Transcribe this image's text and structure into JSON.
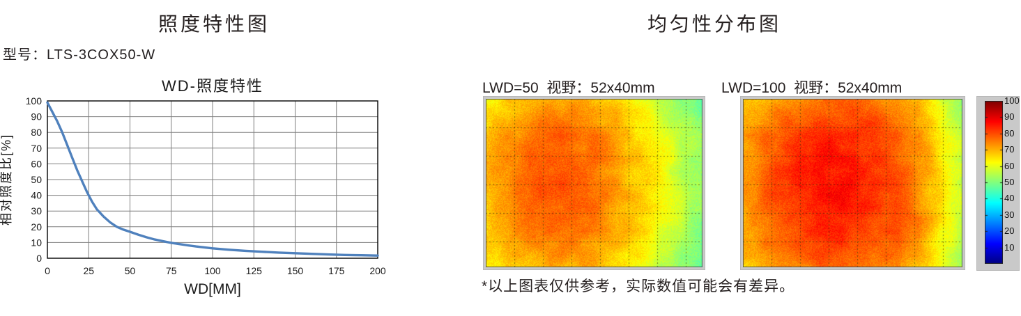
{
  "page": {
    "background": "#ffffff"
  },
  "left_section": {
    "title": "照度特性图",
    "model_label": "型号：LTS-3COX50-W"
  },
  "right_section": {
    "title": "均匀性分布图",
    "footnote": "*以上图表仅供参考，实际数值可能会有差异。",
    "colorbar": {
      "colormap": "jet",
      "vmin": 0,
      "vmax": 100,
      "ticks": [
        100,
        90,
        80,
        70,
        60,
        50,
        40,
        30,
        20,
        10
      ]
    }
  },
  "chart_data": [
    {
      "type": "line",
      "title": "WD-照度特性",
      "xlabel": "WD[MM]",
      "ylabel": "相对照度比[%]",
      "xlim": [
        0,
        200
      ],
      "ylim": [
        0,
        100
      ],
      "xticks": [
        0,
        25,
        50,
        75,
        100,
        125,
        150,
        175,
        200
      ],
      "yticks": [
        0,
        10,
        20,
        30,
        40,
        50,
        60,
        70,
        80,
        90,
        100
      ],
      "grid": true,
      "grid_color": "#7f7f7f",
      "legend_position": "none",
      "series": [
        {
          "name": "相对照度比",
          "color": "#4f81bd",
          "points": [
            [
              0,
              99
            ],
            [
              3,
              93
            ],
            [
              6,
              87
            ],
            [
              9,
              80
            ],
            [
              12,
              72
            ],
            [
              15,
              64
            ],
            [
              18,
              56
            ],
            [
              21,
              49
            ],
            [
              24,
              42
            ],
            [
              27,
              36
            ],
            [
              30,
              31
            ],
            [
              34,
              26.5
            ],
            [
              38,
              22.8
            ],
            [
              42,
              20
            ],
            [
              46,
              18.2
            ],
            [
              50,
              16.8
            ],
            [
              55,
              15
            ],
            [
              60,
              13.3
            ],
            [
              65,
              11.9
            ],
            [
              70,
              10.8
            ],
            [
              75,
              9.8
            ],
            [
              80,
              9
            ],
            [
              85,
              8.2
            ],
            [
              90,
              7.5
            ],
            [
              95,
              6.9
            ],
            [
              100,
              6.3
            ],
            [
              110,
              5.4
            ],
            [
              120,
              4.7
            ],
            [
              130,
              4.1
            ],
            [
              140,
              3.6
            ],
            [
              150,
              3.2
            ],
            [
              160,
              2.8
            ],
            [
              170,
              2.4
            ],
            [
              180,
              2.1
            ],
            [
              190,
              1.9
            ],
            [
              200,
              1.7
            ]
          ]
        }
      ]
    },
    {
      "type": "heatmap",
      "title": "LWD=50  视野：52x40mm",
      "colormap": "jet",
      "value_range": [
        0,
        100
      ],
      "approx_values": {
        "left_edge": 68,
        "hot_center": 79,
        "right_edge": 52
      },
      "render": {
        "seed": 7,
        "base": [
          [
            0,
            68
          ],
          [
            0.08,
            71
          ],
          [
            0.2,
            74
          ],
          [
            0.35,
            76
          ],
          [
            0.5,
            74
          ],
          [
            0.62,
            70
          ],
          [
            0.72,
            66
          ],
          [
            0.82,
            61
          ],
          [
            0.9,
            56
          ],
          [
            1,
            52
          ]
        ],
        "hotspot": {
          "fx": 0.33,
          "fy": 0.45,
          "amp": 4,
          "sx": 0.3,
          "sy": 0.34
        },
        "edge_drop": 5,
        "coarse_amp": 2.5,
        "fine_amp": 3,
        "grid_spacing": 41,
        "grid_dash": [
          2,
          3
        ],
        "grid_color": "rgba(40,40,10,0.6)"
      }
    },
    {
      "type": "heatmap",
      "title": "LWD=100  视野：52x40mm",
      "colormap": "jet",
      "value_range": [
        0,
        100
      ],
      "approx_values": {
        "left_edge": 73,
        "hot_center": 84,
        "right_edge": 57
      },
      "render": {
        "seed": 13,
        "base": [
          [
            0,
            72
          ],
          [
            0.1,
            76
          ],
          [
            0.25,
            80
          ],
          [
            0.4,
            82
          ],
          [
            0.55,
            81
          ],
          [
            0.7,
            78
          ],
          [
            0.8,
            74
          ],
          [
            0.88,
            67
          ],
          [
            0.94,
            61
          ],
          [
            1,
            57
          ]
        ],
        "hotspot": {
          "fx": 0.38,
          "fy": 0.5,
          "amp": 4,
          "sx": 0.32,
          "sy": 0.36
        },
        "edge_drop": 5,
        "coarse_amp": 2.5,
        "fine_amp": 3,
        "grid_spacing": 41,
        "grid_dash": [
          2,
          3
        ],
        "grid_color": "rgba(40,40,10,0.6)"
      }
    }
  ]
}
